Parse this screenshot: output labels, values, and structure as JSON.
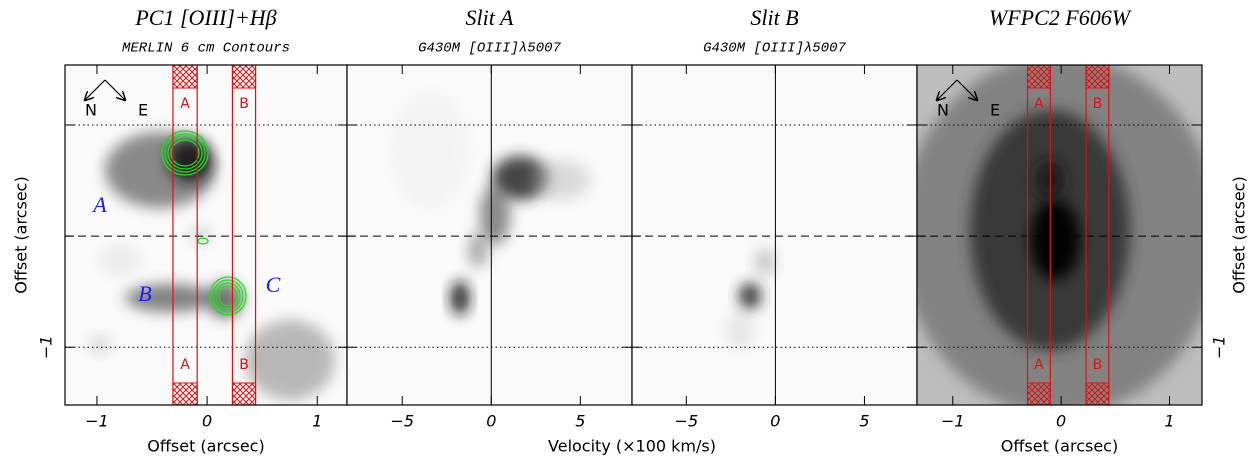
{
  "chart_data": [
    {
      "type": "image",
      "title": "PC1 [OIII]+Hβ",
      "subtitle": "MERLIN 6 cm Contours",
      "xlabel": "Offset (arcsec)",
      "ylabel": "Offset (arcsec)",
      "xlim": [
        -1.29,
        1.27
      ],
      "ylim": [
        -1.52,
        1.54
      ],
      "xticks": [
        {
          "value": -1,
          "label": "−1"
        },
        0,
        1
      ],
      "yticks": [
        {
          "value": -1,
          "label": "−1"
        },
        0,
        1
      ],
      "hlines": [
        {
          "value": 1,
          "style": "dotted"
        },
        {
          "value": 0,
          "style": "dashed"
        },
        {
          "value": -1,
          "style": "dotted"
        }
      ],
      "slits": [
        {
          "name": "A",
          "x": [
            -0.31,
            -0.09
          ]
        },
        {
          "name": "B",
          "x": [
            0.23,
            0.44
          ]
        }
      ],
      "compass": [
        "N",
        "E"
      ],
      "annotations": [
        "A",
        "B",
        "C"
      ]
    },
    {
      "type": "image",
      "title": "Slit A",
      "subtitle": "G430M [OIII]λ5007",
      "xlabel": "Velocity (×100 km/s)",
      "xlim": [
        -8.1,
        7.9
      ],
      "ylim": [
        -1.52,
        1.54
      ],
      "xticks": [
        {
          "value": -5,
          "label": "−5"
        },
        0,
        5
      ],
      "yticks": [
        -1,
        0,
        1
      ],
      "hlines": [
        {
          "value": 1,
          "style": "dotted"
        },
        {
          "value": 0,
          "style": "dashed"
        },
        {
          "value": -1,
          "style": "dotted"
        }
      ],
      "vlines": [
        0
      ]
    },
    {
      "type": "image",
      "title": "Slit B",
      "subtitle": "G430M [OIII]λ5007",
      "xlim": [
        -8.05,
        7.95
      ],
      "ylim": [
        -1.52,
        1.54
      ],
      "xticks": [
        {
          "value": -5,
          "label": "−5"
        },
        0,
        5
      ],
      "yticks": [
        -1,
        0,
        1
      ],
      "hlines": [
        {
          "value": 1,
          "style": "dotted"
        },
        {
          "value": 0,
          "style": "dashed"
        },
        {
          "value": -1,
          "style": "dotted"
        }
      ],
      "vlines": [
        0
      ]
    },
    {
      "type": "image",
      "title": "WFPC2 F606W",
      "xlabel": "Offset (arcsec)",
      "ylabel": "Offset (arcsec)",
      "xlim": [
        -1.33,
        1.3
      ],
      "ylim": [
        -1.52,
        1.54
      ],
      "xticks": [
        {
          "value": -1,
          "label": "−1"
        },
        0,
        1
      ],
      "yticks": [
        {
          "value": -1,
          "label": "−1"
        },
        0,
        1
      ],
      "hlines": [
        {
          "value": 1,
          "style": "dotted"
        },
        {
          "value": 0,
          "style": "dashed"
        },
        {
          "value": -1,
          "style": "dotted"
        }
      ],
      "slits": [
        {
          "name": "A",
          "x": [
            -0.31,
            -0.1
          ]
        },
        {
          "name": "B",
          "x": [
            0.23,
            0.44
          ]
        }
      ],
      "compass": [
        "N",
        "E"
      ]
    }
  ]
}
